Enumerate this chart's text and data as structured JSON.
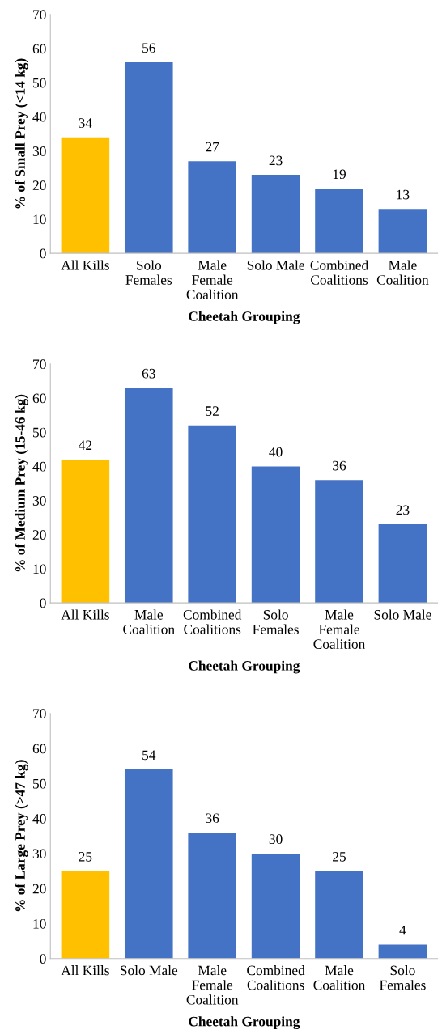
{
  "chart_data": [
    {
      "type": "bar",
      "ylabel": "% of Small Prey (<14 kg)",
      "xlabel": "Cheetah Grouping",
      "categories": [
        "All Kills",
        "Solo\nFemales",
        "Male\nFemale\nCoalition",
        "Solo Male",
        "Combined\nCoalitions",
        "Male\nCoalition"
      ],
      "values": [
        34,
        56,
        27,
        23,
        19,
        13
      ],
      "colors": [
        "#ffc000",
        "#4472c4",
        "#4472c4",
        "#4472c4",
        "#4472c4",
        "#4472c4"
      ],
      "ylim": [
        0,
        70
      ],
      "yticks": [
        0,
        10,
        20,
        30,
        40,
        50,
        60,
        70
      ],
      "data_labels": true,
      "grid": false
    },
    {
      "type": "bar",
      "ylabel": "% of Medium Prey (15-46 kg)",
      "xlabel": "Cheetah Grouping",
      "categories": [
        "All Kills",
        "Male\nCoalition",
        "Combined\nCoalitions",
        "Solo\nFemales",
        "Male\nFemale\nCoalition",
        "Solo Male"
      ],
      "values": [
        42,
        63,
        52,
        40,
        36,
        23
      ],
      "colors": [
        "#ffc000",
        "#4472c4",
        "#4472c4",
        "#4472c4",
        "#4472c4",
        "#4472c4"
      ],
      "ylim": [
        0,
        70
      ],
      "yticks": [
        0,
        10,
        20,
        30,
        40,
        50,
        60,
        70
      ],
      "data_labels": true,
      "grid": false
    },
    {
      "type": "bar",
      "ylabel": "% of Large Prey (>47 kg)",
      "xlabel": "Cheetah Grouping",
      "categories": [
        "All Kills",
        "Solo Male",
        "Male\nFemale\nCoalition",
        "Combined\nCoalitions",
        "Male\nCoalition",
        "Solo\nFemales"
      ],
      "values": [
        25,
        54,
        36,
        30,
        25,
        4
      ],
      "colors": [
        "#ffc000",
        "#4472c4",
        "#4472c4",
        "#4472c4",
        "#4472c4",
        "#4472c4"
      ],
      "ylim": [
        0,
        70
      ],
      "yticks": [
        0,
        10,
        20,
        30,
        40,
        50,
        60,
        70
      ],
      "data_labels": true,
      "grid": false
    }
  ]
}
